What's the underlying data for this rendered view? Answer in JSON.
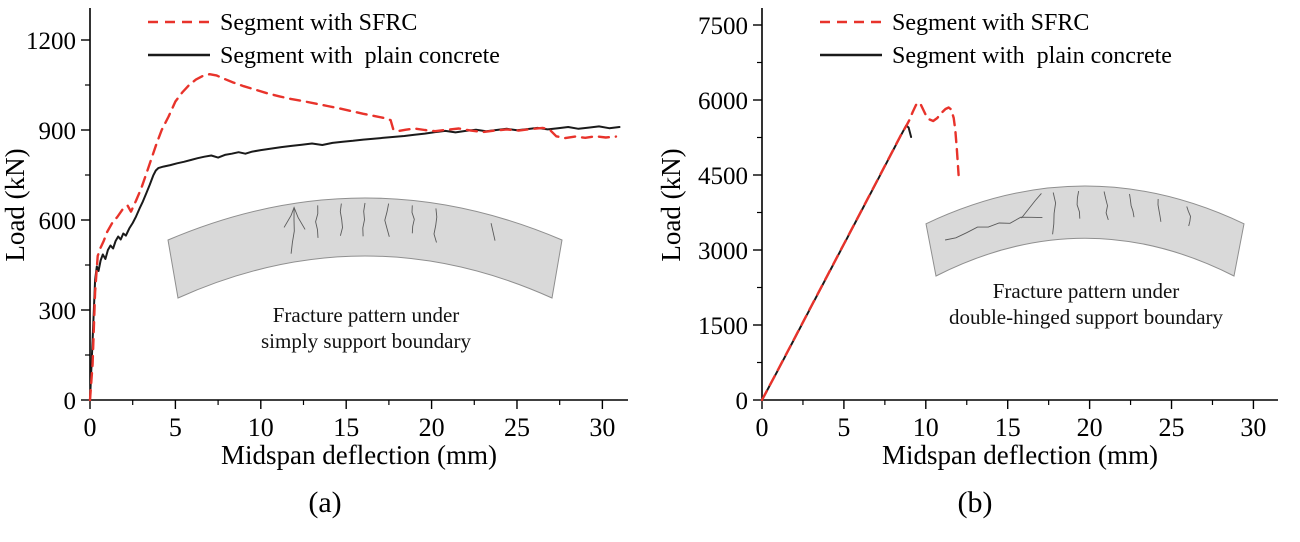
{
  "page": {
    "background": "#ffffff"
  },
  "colors": {
    "sfrc": "#e8332b",
    "plain": "#1a1a1a",
    "inset_fill": "#d9d9d9",
    "inset_stroke": "#8f8f8f",
    "crack": "#5a5a5a"
  },
  "chart_data": [
    {
      "key": "a",
      "type": "line",
      "caption": "(a)",
      "xlabel": "Midspan deflection (mm)",
      "ylabel": "Load (kN)",
      "xlim": [
        0,
        31.5
      ],
      "ylim": [
        0,
        1300
      ],
      "xticks": [
        0,
        5,
        10,
        15,
        20,
        25,
        30
      ],
      "yticks": [
        0,
        300,
        600,
        900,
        1200
      ],
      "x_minor": 2.5,
      "y_minor": 150,
      "grid": false,
      "legend_position": "top-left",
      "inset_caption_lines": [
        "Fracture pattern under",
        "simply support boundary"
      ],
      "series": [
        {
          "name": "Segment with SFRC",
          "style": "dashed",
          "color": "#e8332b",
          "points": [
            [
              0,
              0
            ],
            [
              0.15,
              120
            ],
            [
              0.3,
              360
            ],
            [
              0.45,
              480
            ],
            [
              0.6,
              505
            ],
            [
              0.8,
              530
            ],
            [
              1,
              560
            ],
            [
              1.3,
              590
            ],
            [
              1.6,
              610
            ],
            [
              1.9,
              635
            ],
            [
              2.2,
              648
            ],
            [
              2.4,
              628
            ],
            [
              2.7,
              665
            ],
            [
              3,
              705
            ],
            [
              3.3,
              755
            ],
            [
              3.6,
              805
            ],
            [
              3.9,
              855
            ],
            [
              4.2,
              900
            ],
            [
              4.6,
              945
            ],
            [
              5,
              995
            ],
            [
              5.4,
              1025
            ],
            [
              5.8,
              1050
            ],
            [
              6.2,
              1068
            ],
            [
              6.6,
              1080
            ],
            [
              7,
              1086
            ],
            [
              7.4,
              1082
            ],
            [
              7.8,
              1072
            ],
            [
              8.4,
              1058
            ],
            [
              9,
              1046
            ],
            [
              9.7,
              1034
            ],
            [
              10.4,
              1022
            ],
            [
              11.1,
              1012
            ],
            [
              11.8,
              1003
            ],
            [
              12.5,
              996
            ],
            [
              13.2,
              988
            ],
            [
              13.9,
              980
            ],
            [
              14.6,
              972
            ],
            [
              15.3,
              963
            ],
            [
              16,
              954
            ],
            [
              16.7,
              946
            ],
            [
              17.3,
              939
            ],
            [
              17.6,
              933
            ],
            [
              17.75,
              903
            ],
            [
              18,
              896
            ],
            [
              18.5,
              901
            ],
            [
              19,
              905
            ],
            [
              19.6,
              900
            ],
            [
              20.2,
              896
            ],
            [
              20.9,
              901
            ],
            [
              21.6,
              905
            ],
            [
              22.3,
              898
            ],
            [
              23,
              893
            ],
            [
              23.7,
              898
            ],
            [
              24.4,
              902
            ],
            [
              25.1,
              898
            ],
            [
              25.8,
              903
            ],
            [
              26.5,
              907
            ],
            [
              26.9,
              902
            ],
            [
              27.3,
              879
            ],
            [
              27.8,
              873
            ],
            [
              28.4,
              878
            ],
            [
              29,
              874
            ],
            [
              29.6,
              879
            ],
            [
              30.2,
              875
            ],
            [
              30.8,
              878
            ]
          ]
        },
        {
          "name": "Segment with  plain concrete",
          "style": "solid",
          "color": "#1a1a1a",
          "points": [
            [
              0,
              0
            ],
            [
              0.15,
              200
            ],
            [
              0.3,
              400
            ],
            [
              0.4,
              445
            ],
            [
              0.5,
              430
            ],
            [
              0.62,
              465
            ],
            [
              0.75,
              485
            ],
            [
              0.9,
              470
            ],
            [
              1.05,
              500
            ],
            [
              1.2,
              515
            ],
            [
              1.35,
              505
            ],
            [
              1.5,
              530
            ],
            [
              1.65,
              545
            ],
            [
              1.8,
              535
            ],
            [
              1.95,
              555
            ],
            [
              2.1,
              548
            ],
            [
              2.3,
              572
            ],
            [
              2.5,
              590
            ],
            [
              2.7,
              612
            ],
            [
              2.9,
              638
            ],
            [
              3.1,
              662
            ],
            [
              3.3,
              690
            ],
            [
              3.5,
              718
            ],
            [
              3.7,
              748
            ],
            [
              3.85,
              765
            ],
            [
              4,
              773
            ],
            [
              4.3,
              778
            ],
            [
              4.7,
              783
            ],
            [
              5.1,
              789
            ],
            [
              5.5,
              794
            ],
            [
              5.9,
              800
            ],
            [
              6.3,
              806
            ],
            [
              6.7,
              811
            ],
            [
              7.1,
              815
            ],
            [
              7.5,
              808
            ],
            [
              7.9,
              817
            ],
            [
              8.3,
              821
            ],
            [
              8.7,
              826
            ],
            [
              9.1,
              821
            ],
            [
              9.5,
              828
            ],
            [
              10,
              833
            ],
            [
              10.6,
              838
            ],
            [
              11.2,
              843
            ],
            [
              11.8,
              847
            ],
            [
              12.4,
              851
            ],
            [
              13,
              855
            ],
            [
              13.6,
              850
            ],
            [
              14.2,
              857
            ],
            [
              14.8,
              861
            ],
            [
              15.4,
              864
            ],
            [
              16,
              868
            ],
            [
              16.6,
              871
            ],
            [
              17.2,
              874
            ],
            [
              17.8,
              877
            ],
            [
              18.4,
              880
            ],
            [
              19,
              884
            ],
            [
              19.6,
              888
            ],
            [
              20.2,
              893
            ],
            [
              20.8,
              897
            ],
            [
              21.4,
              892
            ],
            [
              22,
              897
            ],
            [
              22.6,
              901
            ],
            [
              23.2,
              896
            ],
            [
              23.8,
              900
            ],
            [
              24.4,
              904
            ],
            [
              25,
              899
            ],
            [
              25.6,
              903
            ],
            [
              26.2,
              907
            ],
            [
              26.8,
              902
            ],
            [
              27.4,
              906
            ],
            [
              28,
              910
            ],
            [
              28.6,
              904
            ],
            [
              29.2,
              908
            ],
            [
              29.8,
              912
            ],
            [
              30.4,
              906
            ],
            [
              31,
              910
            ]
          ]
        }
      ]
    },
    {
      "key": "b",
      "type": "line",
      "caption": "(b)",
      "xlabel": "Midspan deflection (mm)",
      "ylabel": "Load (kN)",
      "xlim": [
        0,
        31.5
      ],
      "ylim": [
        0,
        7800
      ],
      "xticks": [
        0,
        5,
        10,
        15,
        20,
        25,
        30
      ],
      "yticks": [
        0,
        1500,
        3000,
        4500,
        6000,
        7500
      ],
      "x_minor": 2.5,
      "y_minor": 750,
      "grid": false,
      "legend_position": "top-left",
      "inset_caption_lines": [
        "Fracture pattern under",
        "double-hinged support boundary"
      ],
      "series": [
        {
          "name": "Segment with SFRC",
          "style": "dashed",
          "color": "#e8332b",
          "points": [
            [
              0,
              0
            ],
            [
              1,
              620
            ],
            [
              2,
              1245
            ],
            [
              3,
              1870
            ],
            [
              4,
              2495
            ],
            [
              5,
              3120
            ],
            [
              6,
              3745
            ],
            [
              7,
              4370
            ],
            [
              8,
              4995
            ],
            [
              8.5,
              5310
            ],
            [
              8.8,
              5480
            ],
            [
              9,
              5600
            ],
            [
              9.2,
              5760
            ],
            [
              9.4,
              5900
            ],
            [
              9.55,
              5950
            ],
            [
              9.7,
              5905
            ],
            [
              9.85,
              5800
            ],
            [
              10,
              5700
            ],
            [
              10.2,
              5615
            ],
            [
              10.45,
              5580
            ],
            [
              10.7,
              5640
            ],
            [
              10.95,
              5740
            ],
            [
              11.2,
              5820
            ],
            [
              11.4,
              5850
            ],
            [
              11.55,
              5810
            ],
            [
              11.7,
              5640
            ],
            [
              11.8,
              5400
            ],
            [
              11.9,
              5000
            ],
            [
              12,
              4500
            ]
          ]
        },
        {
          "name": "Segment with  plain concrete",
          "style": "solid",
          "color": "#1a1a1a",
          "points": [
            [
              0,
              0
            ],
            [
              1,
              615
            ],
            [
              2,
              1240
            ],
            [
              3,
              1865
            ],
            [
              4,
              2490
            ],
            [
              5,
              3115
            ],
            [
              6,
              3740
            ],
            [
              7,
              4365
            ],
            [
              8,
              4990
            ],
            [
              8.5,
              5305
            ],
            [
              8.8,
              5490
            ],
            [
              8.95,
              5450
            ],
            [
              9.1,
              5260
            ]
          ]
        }
      ]
    }
  ]
}
